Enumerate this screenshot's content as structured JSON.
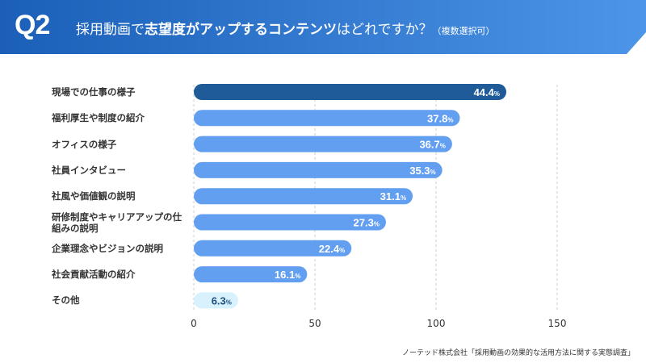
{
  "header": {
    "question_no": "Q2",
    "title_pre": "採用動画で",
    "title_bold": "志望度がアップするコンテンツ",
    "title_post": "はどれですか？",
    "title_note": "（複数選択可）"
  },
  "source": "ノーテッド株式会社「採用動画の効果的な活用方法に関する実態調査」",
  "colors": {
    "header_start": "#1b5fb8",
    "header_end": "#4c95e8",
    "top_bar": "#1f5b99",
    "bar": "#629ff0",
    "other_bar": "#d8f2fd",
    "other_text": "#1f4f80"
  },
  "chart_data": {
    "type": "bar",
    "orientation": "horizontal",
    "categories": [
      "現場での仕事の様子",
      "福利厚生や制度の紹介",
      "オフィスの様子",
      "社員インタビュー",
      "社風や価値観の説明",
      "研修制度やキャリアアップの仕組みの説明",
      "企業理念やビジョンの説明",
      "社会貢献活動の紹介",
      "その他"
    ],
    "values": [
      44.4,
      37.8,
      36.7,
      35.3,
      31.1,
      27.3,
      22.4,
      16.1,
      6.3
    ],
    "value_labels": [
      "44.4",
      "37.8",
      "36.7",
      "35.3",
      "31.1",
      "27.3",
      "22.4",
      "16.1",
      "6.3"
    ],
    "unit": "%",
    "x_ticks": [
      "0",
      "50",
      "100",
      "150"
    ],
    "xlim": [
      0,
      150
    ],
    "grid": true
  }
}
